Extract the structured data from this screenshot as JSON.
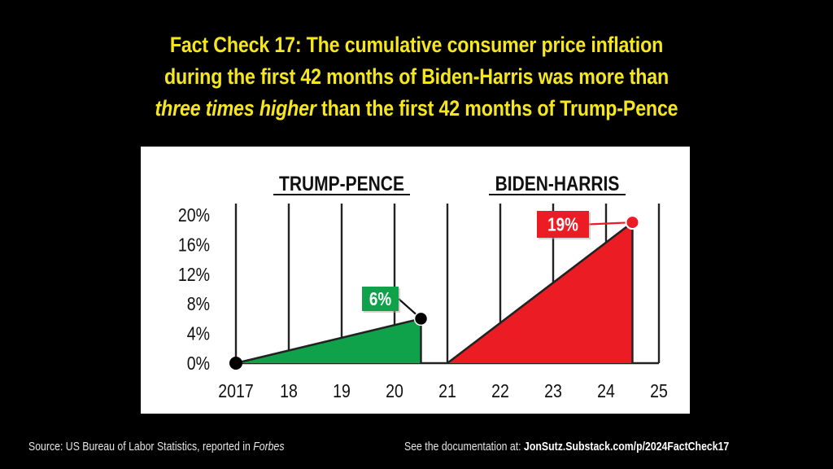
{
  "title": {
    "line1": "Fact Check 17: The cumulative consumer price inflation",
    "line2": "during the first 42 months of Biden-Harris was more than",
    "line3_italic": "three times higher",
    "line3_rest": " than the first 42 months of Trump-Pence"
  },
  "footer": {
    "source_prefix": "Source: US Bureau of Labor Statistics, reported in ",
    "source_italic": "Forbes",
    "doc_prefix": "See the documentation at: ",
    "doc_link": "JonSutz.Substack.com/p/2024FactCheck17"
  },
  "chart_data": {
    "type": "area",
    "title": "",
    "xlabel": "",
    "ylabel": "",
    "x_ticks": [
      "2017",
      "18",
      "19",
      "20",
      "21",
      "22",
      "23",
      "24",
      "25"
    ],
    "x_tick_values": [
      2017,
      2018,
      2019,
      2020,
      2021,
      2022,
      2023,
      2024,
      2025
    ],
    "y_ticks": [
      "20%",
      "16%",
      "12%",
      "8%",
      "4%",
      "0%"
    ],
    "y_tick_values": [
      20,
      16,
      12,
      8,
      4,
      0
    ],
    "xlim": [
      2017,
      2025
    ],
    "ylim": [
      0,
      20
    ],
    "grid": "vertical",
    "series": [
      {
        "name": "TRUMP-PENCE",
        "color": "#0fa24a",
        "x": [
          2017,
          2020.5
        ],
        "y": [
          0,
          6
        ],
        "label": "6%",
        "marker_color": "#000000"
      },
      {
        "name": "BIDEN-HARRIS",
        "color": "#ec1c24",
        "x": [
          2021,
          2024.5
        ],
        "y": [
          0,
          19
        ],
        "label": "19%",
        "marker_color": "#ec1c24"
      }
    ]
  }
}
